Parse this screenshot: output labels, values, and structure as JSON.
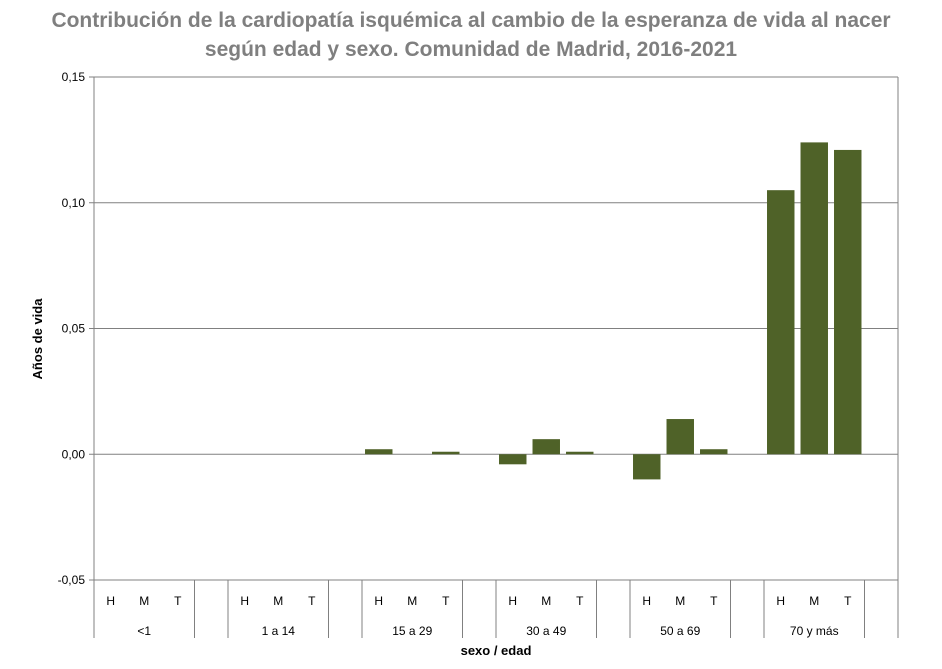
{
  "chart_data": {
    "type": "bar",
    "title_line1": "Contribución de la cardiopatía isquémica al cambio de la esperanza de vida al nacer",
    "title_line2": "según edad y sexo. Comunidad de Madrid, 2016-2021",
    "xlabel": "sexo / edad",
    "ylabel": "Años de vida",
    "ylim": [
      -0.05,
      0.15
    ],
    "yticks": [
      -0.05,
      0.0,
      0.05,
      0.1,
      0.15
    ],
    "ytick_labels": [
      "-0,05",
      "0,00",
      "0,05",
      "0,10",
      "0,15"
    ],
    "grid": true,
    "bar_color": "#4f6228",
    "sub_categories": [
      "H",
      "M",
      "T"
    ],
    "groups": [
      {
        "label": "<1",
        "values": [
          0.0,
          0.0,
          0.0
        ]
      },
      {
        "label": "1 a 14",
        "values": [
          0.0,
          0.0,
          0.0
        ]
      },
      {
        "label": "15 a 29",
        "values": [
          0.002,
          0.0,
          0.001
        ]
      },
      {
        "label": "30 a 49",
        "values": [
          -0.004,
          0.006,
          0.001
        ]
      },
      {
        "label": "50 a 69",
        "values": [
          -0.01,
          0.014,
          0.002
        ]
      },
      {
        "label": "70 y más",
        "values": [
          0.105,
          0.124,
          0.121
        ]
      }
    ]
  }
}
